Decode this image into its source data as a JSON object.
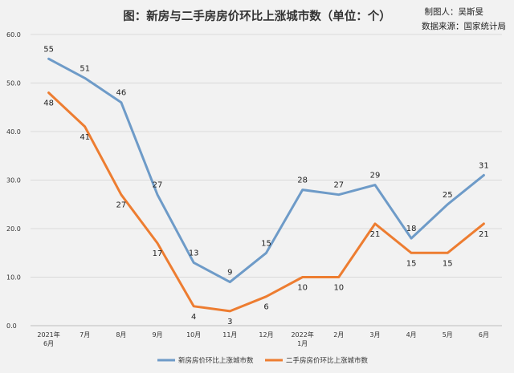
{
  "header": {
    "title": "图：新房与二手房房价环比上涨城市数（单位：个）",
    "credit_author": "制图人：吴斯旻",
    "credit_source": "数据来源：国家统计局"
  },
  "chart_data": {
    "type": "line",
    "title": "图：新房与二手房房价环比上涨城市数（单位：个）",
    "categories": [
      [
        "2021年",
        "6月"
      ],
      [
        "7月"
      ],
      [
        "8月"
      ],
      [
        "9月"
      ],
      [
        "10月"
      ],
      [
        "11月"
      ],
      [
        "12月"
      ],
      [
        "2022年",
        "1月"
      ],
      [
        "2月"
      ],
      [
        "3月"
      ],
      [
        "4月"
      ],
      [
        "5月"
      ],
      [
        "6月"
      ]
    ],
    "series": [
      {
        "name": "新房房价环比上涨城市数",
        "color": "#6e9bc8",
        "values": [
          55,
          51,
          46,
          27,
          13,
          9,
          15,
          28,
          27,
          29,
          18,
          25,
          31
        ]
      },
      {
        "name": "二手房房价环比上涨城市数",
        "color": "#ed7d31",
        "values": [
          48,
          41,
          27,
          17,
          4,
          3,
          6,
          10,
          10,
          21,
          15,
          15,
          21
        ]
      }
    ],
    "ylim": [
      0,
      60
    ],
    "yticks": [
      "0.0",
      "10.0",
      "20.0",
      "30.0",
      "40.0",
      "50.0",
      "60.0"
    ],
    "grid": true,
    "legend": "bottom"
  }
}
